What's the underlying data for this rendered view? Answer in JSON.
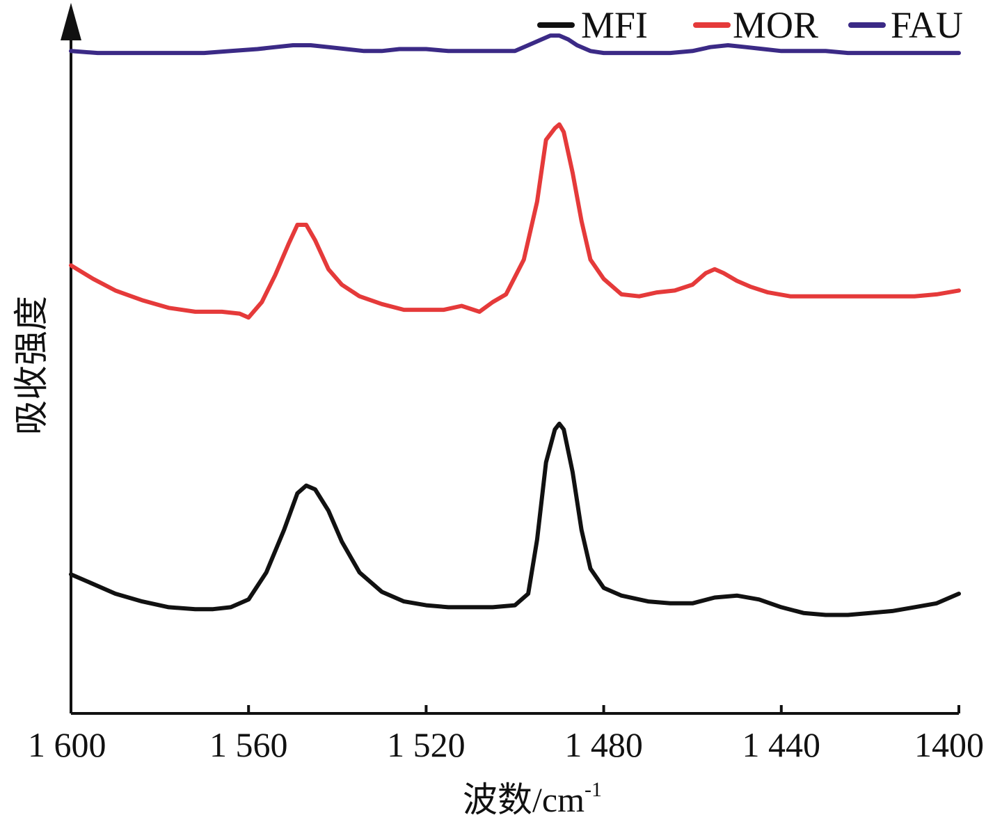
{
  "chart_data": {
    "type": "line",
    "xlabel": "波数/cm",
    "xlabel_sup": "-1",
    "ylabel": "吸收强度",
    "xlim": [
      1600,
      1400
    ],
    "x_reversed": true,
    "x_ticks": [
      1600,
      1560,
      1520,
      1480,
      1440,
      1400
    ],
    "x_tick_labels": [
      "1 600",
      "1 560",
      "1 520",
      "1 480",
      "1 440",
      "1400"
    ],
    "y_ticks_shown": false,
    "grid": false,
    "legend_position": "top-right",
    "series": [
      {
        "name": "MFI",
        "color": "#111111",
        "x": [
          1600,
          1596,
          1590,
          1584,
          1578,
          1572,
          1568,
          1564,
          1560,
          1556,
          1552,
          1549,
          1547,
          1545,
          1542,
          1539,
          1535,
          1530,
          1525,
          1520,
          1515,
          1510,
          1505,
          1500,
          1497,
          1495,
          1493,
          1491,
          1490,
          1489,
          1487,
          1485,
          1483,
          1480,
          1476,
          1470,
          1465,
          1460,
          1455,
          1450,
          1445,
          1440,
          1435,
          1430,
          1425,
          1420,
          1415,
          1410,
          1405,
          1400
        ],
        "y": [
          0.37,
          0.33,
          0.27,
          0.23,
          0.2,
          0.19,
          0.19,
          0.2,
          0.24,
          0.38,
          0.6,
          0.79,
          0.83,
          0.81,
          0.7,
          0.54,
          0.38,
          0.28,
          0.23,
          0.21,
          0.2,
          0.2,
          0.2,
          0.21,
          0.27,
          0.55,
          0.95,
          1.12,
          1.15,
          1.12,
          0.9,
          0.6,
          0.4,
          0.3,
          0.26,
          0.23,
          0.22,
          0.22,
          0.25,
          0.26,
          0.24,
          0.2,
          0.17,
          0.16,
          0.16,
          0.17,
          0.18,
          0.2,
          0.22,
          0.27
        ]
      },
      {
        "name": "MOR",
        "color": "#e53a3a",
        "x": [
          1600,
          1595,
          1590,
          1584,
          1578,
          1572,
          1566,
          1562,
          1560,
          1557,
          1554,
          1551,
          1549,
          1547,
          1545,
          1542,
          1539,
          1535,
          1530,
          1525,
          1520,
          1516,
          1512,
          1508,
          1505,
          1502,
          1498,
          1495,
          1493,
          1491,
          1490,
          1489,
          1487,
          1485,
          1483,
          1480,
          1476,
          1472,
          1468,
          1464,
          1460,
          1457,
          1455,
          1453,
          1450,
          1447,
          1443,
          1438,
          1430,
          1420,
          1410,
          1405,
          1400
        ],
        "y": [
          1.97,
          1.9,
          1.84,
          1.79,
          1.75,
          1.73,
          1.73,
          1.72,
          1.7,
          1.78,
          1.92,
          2.08,
          2.18,
          2.18,
          2.1,
          1.95,
          1.87,
          1.81,
          1.77,
          1.74,
          1.74,
          1.74,
          1.76,
          1.73,
          1.78,
          1.82,
          2.0,
          2.3,
          2.62,
          2.68,
          2.7,
          2.66,
          2.45,
          2.2,
          2.0,
          1.9,
          1.82,
          1.81,
          1.83,
          1.84,
          1.87,
          1.93,
          1.95,
          1.93,
          1.89,
          1.86,
          1.83,
          1.81,
          1.81,
          1.81,
          1.81,
          1.82,
          1.84
        ]
      },
      {
        "name": "FAU",
        "color": "#3b2a86",
        "x": [
          1600,
          1594,
          1588,
          1582,
          1576,
          1570,
          1564,
          1558,
          1554,
          1550,
          1546,
          1542,
          1538,
          1534,
          1530,
          1526,
          1520,
          1515,
          1510,
          1505,
          1500,
          1497,
          1494,
          1492,
          1490,
          1488,
          1486,
          1483,
          1480,
          1475,
          1470,
          1465,
          1460,
          1456,
          1452,
          1448,
          1444,
          1440,
          1435,
          1430,
          1425,
          1420,
          1415,
          1410,
          1405,
          1400
        ],
        "y": [
          3.08,
          3.07,
          3.07,
          3.07,
          3.07,
          3.07,
          3.08,
          3.09,
          3.1,
          3.11,
          3.11,
          3.1,
          3.09,
          3.08,
          3.08,
          3.09,
          3.09,
          3.08,
          3.08,
          3.08,
          3.08,
          3.11,
          3.14,
          3.16,
          3.16,
          3.14,
          3.11,
          3.08,
          3.07,
          3.07,
          3.07,
          3.07,
          3.08,
          3.1,
          3.11,
          3.1,
          3.09,
          3.08,
          3.08,
          3.08,
          3.07,
          3.07,
          3.07,
          3.07,
          3.07,
          3.07
        ]
      }
    ]
  }
}
